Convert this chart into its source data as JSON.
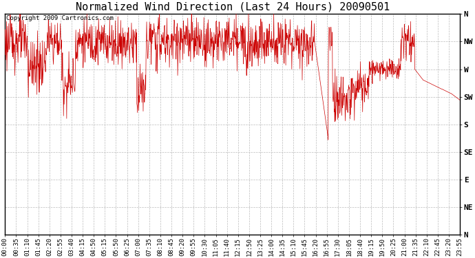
{
  "title": "Normalized Wind Direction (Last 24 Hours) 20090501",
  "copyright_text": "Copyright 2009 Cartronics.com",
  "line_color": "#cc0000",
  "background_color": "#ffffff",
  "plot_bg_color": "#ffffff",
  "grid_color": "#bbbbbb",
  "ytick_labels": [
    "N",
    "NW",
    "W",
    "SW",
    "S",
    "SE",
    "E",
    "NE",
    "N"
  ],
  "ytick_values": [
    1.0,
    0.875,
    0.75,
    0.625,
    0.5,
    0.375,
    0.25,
    0.125,
    0.0
  ],
  "xtick_labels": [
    "00:00",
    "00:35",
    "01:10",
    "01:45",
    "02:20",
    "02:55",
    "03:40",
    "04:15",
    "04:50",
    "05:15",
    "05:50",
    "06:25",
    "07:00",
    "07:35",
    "08:10",
    "08:45",
    "09:20",
    "09:55",
    "10:30",
    "11:05",
    "11:40",
    "12:15",
    "12:50",
    "13:25",
    "14:00",
    "14:35",
    "15:10",
    "15:45",
    "16:20",
    "16:55",
    "17:30",
    "18:05",
    "18:40",
    "19:15",
    "19:50",
    "20:25",
    "21:00",
    "21:35",
    "22:10",
    "22:45",
    "23:20",
    "23:55"
  ],
  "title_fontsize": 11,
  "tick_fontsize": 6.5,
  "ylabel_fontsize": 8,
  "copyright_fontsize": 6.5,
  "figsize": [
    6.9,
    3.75
  ],
  "dpi": 100
}
